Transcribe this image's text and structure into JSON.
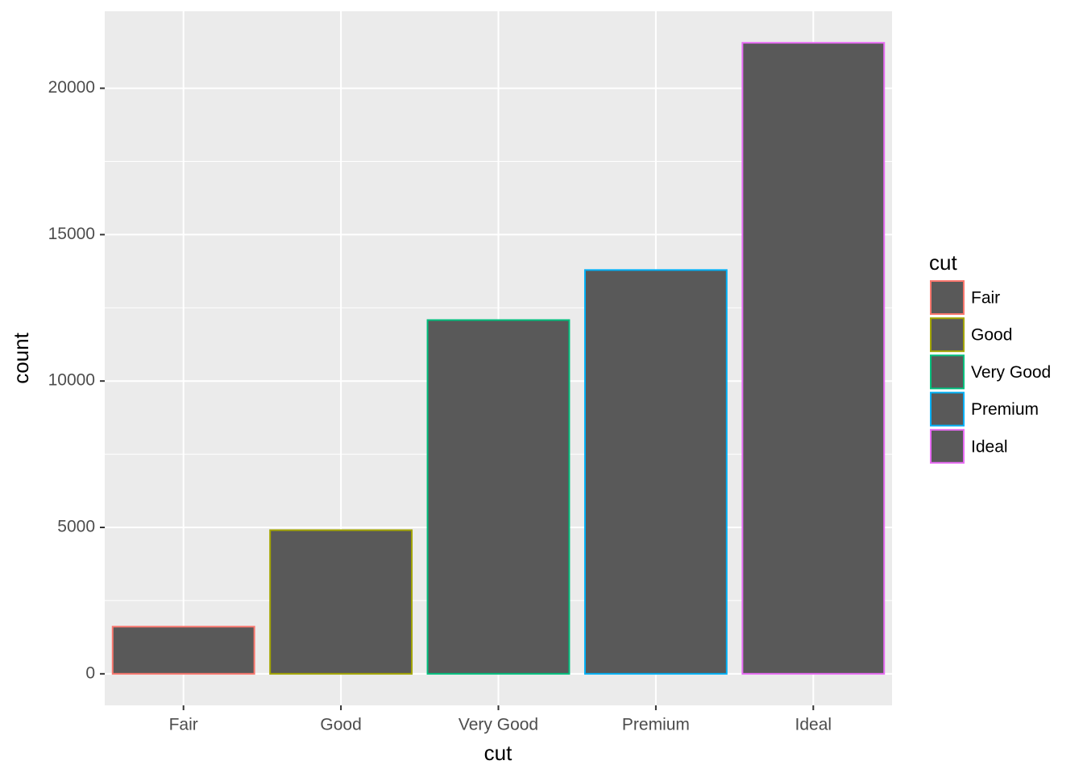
{
  "chart_data": {
    "type": "bar",
    "categories": [
      "Fair",
      "Good",
      "Very Good",
      "Premium",
      "Ideal"
    ],
    "series": [
      {
        "name": "count",
        "values": [
          1610,
          4906,
          12082,
          13791,
          21551
        ]
      }
    ],
    "colors": [
      "#F8766D",
      "#A3A500",
      "#00BF7D",
      "#00B0F6",
      "#E76BF3"
    ],
    "fill": "#595959",
    "x_label": "cut",
    "y_label": "count",
    "legend_title": "cut",
    "ylim": [
      -1077.55,
      22628.55
    ],
    "yticks": [
      0,
      5000,
      10000,
      15000,
      20000
    ],
    "y_minor_gridlines": [
      2500,
      7500,
      12500,
      17500
    ],
    "grid": true,
    "legend": "right"
  }
}
